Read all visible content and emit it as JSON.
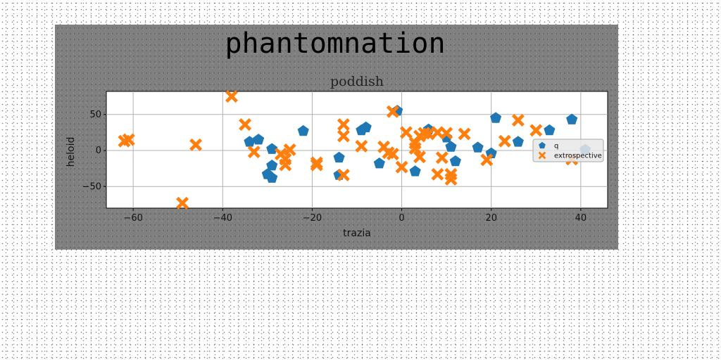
{
  "colors": {
    "series_0": "#1f77b4",
    "series_1": "#ff7f0e",
    "figure_bg": "#808080",
    "axes_bg": "#ffffff",
    "grid": "#b0b0b0"
  },
  "chart_data": {
    "type": "scatter",
    "title": "phantomnation",
    "subtitle": "poddish",
    "xlabel": "trazia",
    "ylabel": "heloid",
    "xlim": [
      -66,
      46
    ],
    "ylim": [
      -80,
      82
    ],
    "xticks": [
      -60,
      -40,
      -20,
      0,
      20,
      40
    ],
    "yticks": [
      -50,
      0,
      50
    ],
    "xtick_labels": [
      "−60",
      "−40",
      "−20",
      "0",
      "20",
      "40"
    ],
    "ytick_labels": [
      "−50",
      "0",
      "50"
    ],
    "grid": true,
    "legend_position": "right",
    "series": [
      {
        "name": "q",
        "marker": "pentagon",
        "color": "#1f77b4",
        "points": [
          [
            -22,
            27
          ],
          [
            -32,
            15
          ],
          [
            -34,
            12
          ],
          [
            -29,
            2
          ],
          [
            -29,
            -21
          ],
          [
            -30,
            -33
          ],
          [
            -29,
            -38
          ],
          [
            -14,
            -34
          ],
          [
            -14,
            -10
          ],
          [
            -9,
            28
          ],
          [
            -8,
            32
          ],
          [
            -5,
            -18
          ],
          [
            3,
            -29
          ],
          [
            6,
            29
          ],
          [
            10,
            18
          ],
          [
            11,
            5
          ],
          [
            12,
            -15
          ],
          [
            17,
            4
          ],
          [
            20,
            -4
          ],
          [
            21,
            45
          ],
          [
            26,
            12
          ],
          [
            33,
            28
          ],
          [
            38,
            43
          ],
          [
            41,
            1
          ],
          [
            -1,
            55
          ]
        ]
      },
      {
        "name": "extrospective",
        "marker": "x",
        "color": "#ff7f0e",
        "points": [
          [
            -61,
            15
          ],
          [
            -62,
            13
          ],
          [
            -46,
            8
          ],
          [
            -49,
            -73
          ],
          [
            -38,
            75
          ],
          [
            -35,
            36
          ],
          [
            -33,
            -2
          ],
          [
            -27,
            -5
          ],
          [
            -26,
            -12
          ],
          [
            -26,
            -20
          ],
          [
            -25,
            1
          ],
          [
            -19,
            -17
          ],
          [
            -19,
            -20
          ],
          [
            -13,
            36
          ],
          [
            -13,
            20
          ],
          [
            -13,
            -34
          ],
          [
            -9,
            6
          ],
          [
            -4,
            5
          ],
          [
            -3,
            -3
          ],
          [
            -2,
            -5
          ],
          [
            -2,
            54
          ],
          [
            0,
            -23
          ],
          [
            1,
            25
          ],
          [
            3,
            10
          ],
          [
            3,
            3
          ],
          [
            4,
            20
          ],
          [
            4,
            -9
          ],
          [
            5,
            24
          ],
          [
            6,
            23
          ],
          [
            8,
            25
          ],
          [
            9,
            -10
          ],
          [
            8,
            -33
          ],
          [
            11,
            -33
          ],
          [
            11,
            -40
          ],
          [
            10,
            24
          ],
          [
            14,
            23
          ],
          [
            19,
            -13
          ],
          [
            23,
            13
          ],
          [
            26,
            42
          ],
          [
            30,
            28
          ],
          [
            38,
            -12
          ]
        ]
      }
    ]
  }
}
